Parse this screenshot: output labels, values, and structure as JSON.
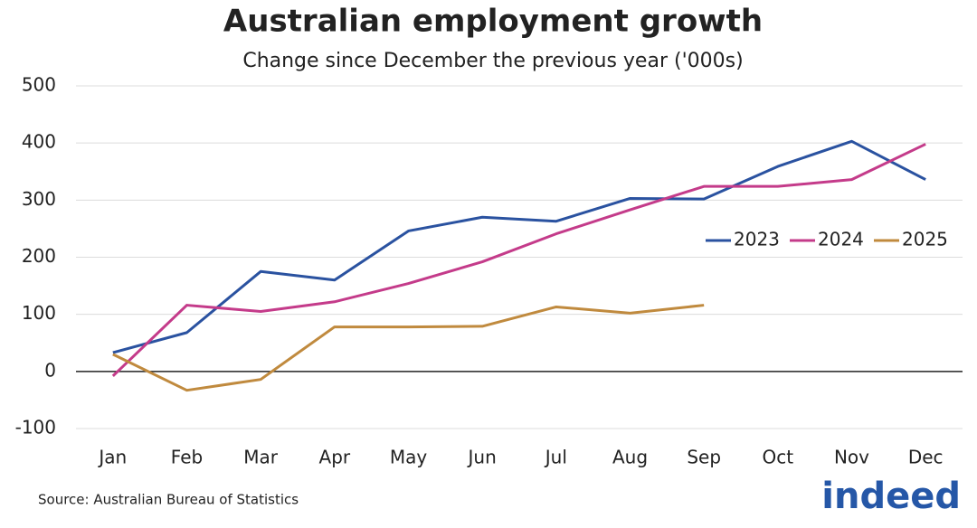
{
  "chart_data": {
    "type": "line",
    "title": "Australian employment growth",
    "subtitle": "Change since December the previous year ('000s)",
    "source": "Source: Australian Bureau of Statistics",
    "logo": "indeed",
    "categories": [
      "Jan",
      "Feb",
      "Mar",
      "Apr",
      "May",
      "Jun",
      "Jul",
      "Aug",
      "Sep",
      "Oct",
      "Nov",
      "Dec"
    ],
    "series": [
      {
        "name": "2023",
        "color": "#2a52a0",
        "values": [
          33,
          68,
          175,
          160,
          246,
          270,
          263,
          303,
          302,
          359,
          403,
          336
        ]
      },
      {
        "name": "2024",
        "color": "#c43b8a",
        "values": [
          -8,
          116,
          105,
          122,
          154,
          192,
          241,
          283,
          324,
          324,
          336,
          398
        ]
      },
      {
        "name": "2025",
        "color": "#c08a3e",
        "values": [
          30,
          -33,
          -14,
          78,
          78,
          79,
          113,
          102,
          116,
          null,
          null,
          null
        ]
      }
    ],
    "ylim": [
      -100,
      500
    ],
    "yticks": [
      -100,
      0,
      100,
      200,
      300,
      400,
      500
    ],
    "grid": true,
    "legend": "right"
  }
}
